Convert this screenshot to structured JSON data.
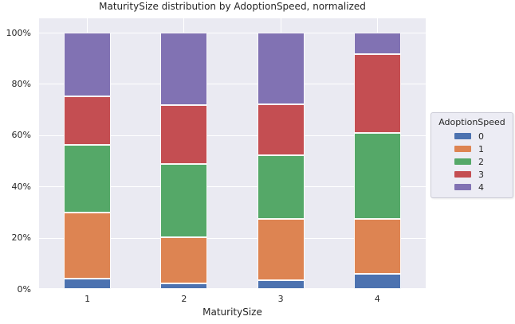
{
  "title": "MaturitySize distribution by AdoptionSpeed, normalized",
  "colors": {
    "figure_bg": "#FFFFFF",
    "axes_bg": "#EAEAF2",
    "grid": "#FFFFFF",
    "text": "#262626",
    "legend_bg": "#ECECF4",
    "legend_border": "#CBCBD6"
  },
  "chart_data": {
    "type": "bar",
    "stacked": true,
    "normalized": true,
    "title": "MaturitySize distribution by AdoptionSpeed, normalized",
    "xlabel": "MaturitySize",
    "ylabel": "",
    "legend_title": "AdoptionSpeed",
    "legend_position": "right-outside",
    "grid": true,
    "ylim": [
      0,
      100
    ],
    "y_tick_labels": [
      "0%",
      "20%",
      "40%",
      "60%",
      "80%",
      "100%"
    ],
    "categories": [
      "1",
      "2",
      "3",
      "4"
    ],
    "series": [
      {
        "name": "0",
        "color": "#4C72B0",
        "values": [
          4.0,
          2.2,
          3.3,
          5.8
        ]
      },
      {
        "name": "1",
        "color": "#DD8452",
        "values": [
          25.9,
          17.9,
          24.0,
          21.4
        ]
      },
      {
        "name": "2",
        "color": "#55A868",
        "values": [
          26.2,
          28.7,
          24.9,
          33.6
        ]
      },
      {
        "name": "3",
        "color": "#C44E52",
        "values": [
          19.0,
          22.9,
          19.8,
          30.7
        ]
      },
      {
        "name": "4",
        "color": "#8172B3",
        "values": [
          24.9,
          28.3,
          28.0,
          8.5
        ]
      }
    ]
  }
}
